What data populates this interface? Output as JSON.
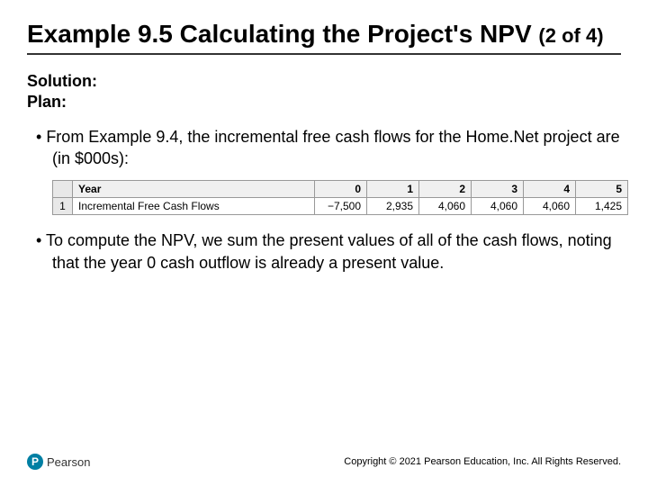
{
  "title_main": "Example 9.5 Calculating the Project's NPV",
  "title_sub": "(2 of 4)",
  "subhead_line1": "Solution:",
  "subhead_line2": "Plan:",
  "bullet1": "From Example 9.4, the incremental free cash flows for the Home.Net project are (in $000s):",
  "bullet2": "To compute the NPV, we sum the present values of all of the cash flows, noting that the year 0 cash outflow is already a present value.",
  "table": {
    "rownum": "1",
    "year_label": "Year",
    "years": [
      "0",
      "1",
      "2",
      "3",
      "4",
      "5"
    ],
    "row_label": "Incremental Free Cash Flows",
    "values": [
      "−7,500",
      "2,935",
      "4,060",
      "4,060",
      "4,060",
      "1,425"
    ]
  },
  "logo_letter": "P",
  "logo_text": "Pearson",
  "copyright": "Copyright © 2021 Pearson Education, Inc. All Rights Reserved."
}
